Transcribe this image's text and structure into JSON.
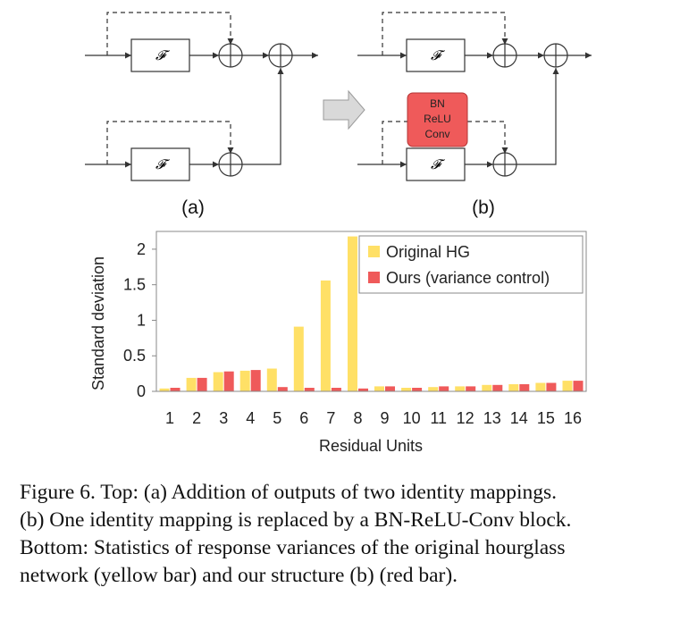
{
  "diagram": {
    "block_label": "𝓕",
    "label_a": "(a)",
    "label_b": "(b)",
    "red_block_lines": [
      "BN",
      "ReLU",
      "Conv"
    ],
    "colors": {
      "red_block": "#ef5a5a",
      "arrow_fill": "#d9d9d9"
    }
  },
  "chart_data": {
    "type": "bar",
    "xlabel": "Residual Units",
    "ylabel": "Standard deviation",
    "ylim": [
      0,
      2.25
    ],
    "yticks": [
      "0",
      "0.5",
      "1",
      "1.5",
      "2"
    ],
    "categories": [
      "1",
      "2",
      "3",
      "4",
      "5",
      "6",
      "7",
      "8",
      "9",
      "10",
      "11",
      "12",
      "13",
      "14",
      "15",
      "16"
    ],
    "series": [
      {
        "name": "Original HG",
        "color": "#ffe066",
        "values": [
          0.04,
          0.19,
          0.27,
          0.29,
          0.32,
          0.91,
          1.56,
          2.18,
          0.07,
          0.05,
          0.06,
          0.07,
          0.09,
          0.1,
          0.12,
          0.15
        ]
      },
      {
        "name": "Ours (variance control)",
        "color": "#ef5a5a",
        "values": [
          0.05,
          0.19,
          0.28,
          0.3,
          0.06,
          0.05,
          0.05,
          0.04,
          0.07,
          0.05,
          0.07,
          0.07,
          0.09,
          0.1,
          0.12,
          0.15
        ]
      }
    ],
    "grid": false,
    "legend_position": "top-right"
  },
  "caption": {
    "lines": [
      "Figure 6.  Top: (a) Addition of outputs of two identity mappings.",
      "(b) One identity mapping is replaced by a BN-ReLU-Conv block.",
      "Bottom: Statistics of response variances of the original hourglass",
      "network (yellow bar) and our structure (b) (red bar)."
    ]
  }
}
